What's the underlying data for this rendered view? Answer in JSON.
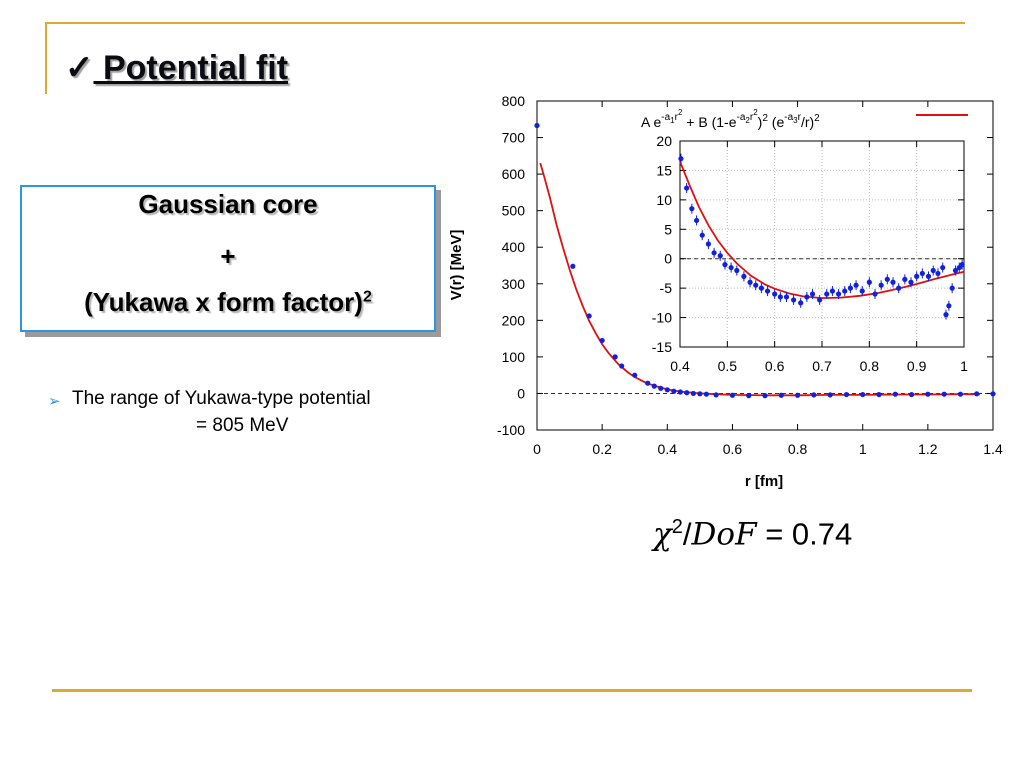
{
  "slide": {
    "check_mark": "✓",
    "title": " Potential fit",
    "box": {
      "line1": "Gaussian core",
      "line2": "+",
      "line3_base": "(Yukawa x form factor)",
      "line3_sup": "2"
    },
    "bullet": {
      "line1": "The range of Yukawa-type potential",
      "line2": "= 805 MeV"
    },
    "chi": {
      "symbol": "χ",
      "power": "2",
      "slash": "/",
      "dof": "DoF",
      "equals": " = ",
      "value": "0.74"
    },
    "colors": {
      "accent_rule": "#e0a92e",
      "box_border": "#2e95e6",
      "fit_line": "#e01010",
      "data_points": "#1020e0"
    }
  },
  "chart_data": [
    {
      "type": "scatter",
      "ylabel": "V(r) [MeV]",
      "xlabel": "r [fm]",
      "xlim": [
        0,
        1.4
      ],
      "ylim": [
        -100,
        800
      ],
      "xticks": [
        "0",
        "0.2",
        "0.4",
        "0.6",
        "0.8",
        "1",
        "1.2",
        "1.4"
      ],
      "yticks": [
        "800",
        "700",
        "600",
        "500",
        "400",
        "300",
        "200",
        "100",
        "0",
        "-100"
      ],
      "legend": {
        "position": "top-right",
        "label": "A e^{-a1 r^2} + B (1-e^{-a2 r^2})^2 (e^{-a3 r}/r)^2"
      },
      "zero_line": true,
      "series": [
        {
          "kind": "points",
          "x": [
            0,
            0.11,
            0.16,
            0.2,
            0.24,
            0.26,
            0.3,
            0.34,
            0.36,
            0.38,
            0.4,
            0.42,
            0.44,
            0.46,
            0.48,
            0.5,
            0.52,
            0.55,
            0.6,
            0.65,
            0.7,
            0.75,
            0.8,
            0.85,
            0.9,
            0.95,
            1.0,
            1.05,
            1.1,
            1.15,
            1.2,
            1.25,
            1.3,
            1.35,
            1.4
          ],
          "y": [
            733,
            348,
            212,
            145,
            100,
            75,
            50,
            28,
            20,
            14,
            10,
            6,
            4,
            2,
            0,
            -1,
            -2,
            -4,
            -5,
            -6,
            -6,
            -5,
            -5,
            -4,
            -4,
            -3,
            -3,
            -3,
            -2,
            -3,
            -2,
            -2,
            -2,
            -1,
            -1
          ]
        },
        {
          "kind": "fit",
          "x": [
            0.01,
            0.02,
            0.04,
            0.06,
            0.08,
            0.1,
            0.12,
            0.14,
            0.16,
            0.18,
            0.2,
            0.22,
            0.25,
            0.28,
            0.3,
            0.33,
            0.36,
            0.4,
            0.44,
            0.5,
            0.55,
            0.6,
            0.7,
            0.8,
            0.9,
            1.0,
            1.1,
            1.2,
            1.3,
            1.36
          ],
          "y": [
            630,
            600,
            535,
            462,
            398,
            339,
            286,
            240,
            199,
            165,
            135,
            110,
            80,
            57,
            45,
            31,
            21,
            11,
            5,
            0,
            -2,
            -4,
            -5,
            -5,
            -4,
            -4,
            -3,
            -3,
            -2,
            -2
          ]
        }
      ]
    },
    {
      "type": "scatter",
      "xlim": [
        0.4,
        1.0
      ],
      "ylim": [
        -15,
        20
      ],
      "xticks": [
        "0.4",
        "0.5",
        "0.6",
        "0.7",
        "0.8",
        "0.9",
        "1"
      ],
      "yticks": [
        "20",
        "15",
        "10",
        "5",
        "0",
        "-5",
        "-10",
        "-15"
      ],
      "grid": true,
      "zero_line": true,
      "series": [
        {
          "kind": "points",
          "x": [
            0.402,
            0.414,
            0.425,
            0.435,
            0.447,
            0.46,
            0.472,
            0.485,
            0.495,
            0.508,
            0.52,
            0.535,
            0.548,
            0.56,
            0.572,
            0.585,
            0.6,
            0.612,
            0.625,
            0.64,
            0.655,
            0.668,
            0.68,
            0.695,
            0.71,
            0.722,
            0.735,
            0.748,
            0.76,
            0.772,
            0.785,
            0.8,
            0.812,
            0.825,
            0.838,
            0.85,
            0.862,
            0.875,
            0.888,
            0.9,
            0.912,
            0.925,
            0.935,
            0.945,
            0.955,
            0.962,
            0.968,
            0.975,
            0.982,
            0.99,
            0.996
          ],
          "y": [
            17,
            12,
            8.5,
            6.5,
            4,
            2.5,
            1,
            0.5,
            -1,
            -1.5,
            -2,
            -3,
            -4,
            -4.5,
            -5,
            -5.5,
            -6,
            -6.5,
            -6.5,
            -7,
            -7.5,
            -6.5,
            -6,
            -7,
            -6,
            -5.5,
            -6,
            -5.5,
            -5,
            -4.5,
            -5.5,
            -4,
            -6,
            -4.5,
            -3.5,
            -4,
            -5,
            -3.5,
            -4,
            -3,
            -2.5,
            -3,
            -2,
            -2.5,
            -1.5,
            -9.5,
            -8,
            -5,
            -2,
            -1.5,
            -1
          ]
        },
        {
          "kind": "fit",
          "x": [
            0.4,
            0.42,
            0.44,
            0.46,
            0.48,
            0.5,
            0.52,
            0.55,
            0.58,
            0.6,
            0.63,
            0.66,
            0.7,
            0.74,
            0.78,
            0.82,
            0.86,
            0.9,
            0.94,
            0.98,
            1.0
          ],
          "y": [
            16.5,
            12.5,
            8.8,
            5.7,
            3.1,
            1.0,
            -0.8,
            -2.9,
            -4.4,
            -5.1,
            -5.9,
            -6.4,
            -6.7,
            -6.6,
            -6.3,
            -5.8,
            -5.1,
            -4.3,
            -3.4,
            -2.6,
            -2.2
          ]
        }
      ]
    }
  ]
}
